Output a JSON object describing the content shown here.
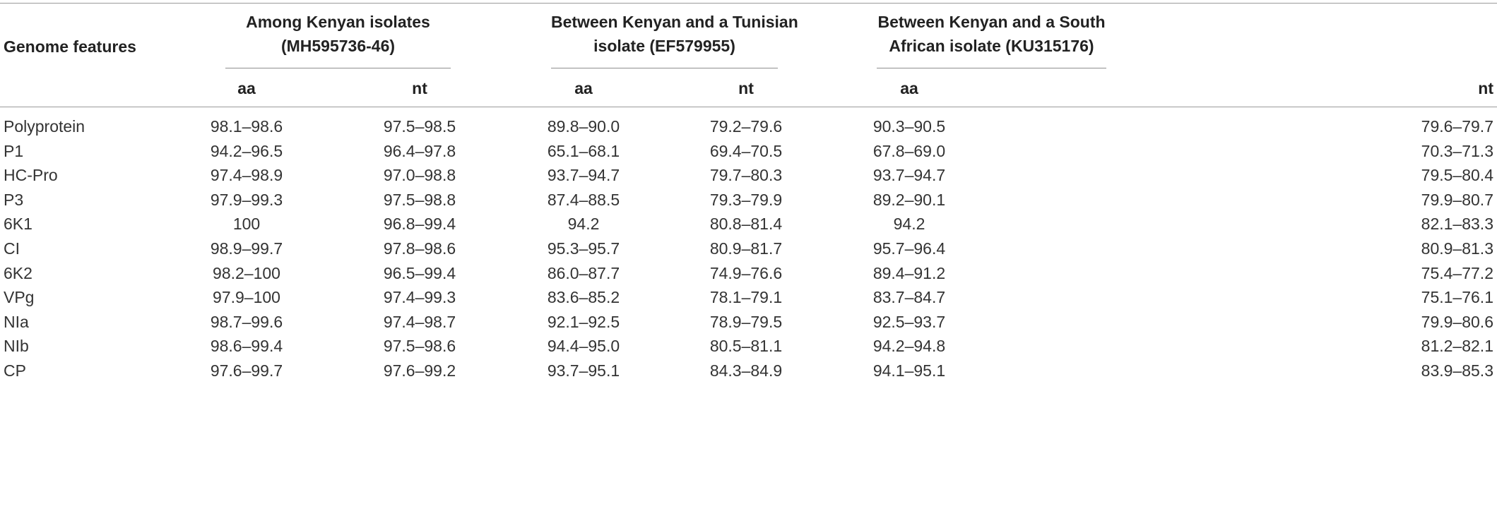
{
  "table": {
    "first_column_header": "Genome features",
    "groups": [
      {
        "line1": "Among Kenyan isolates",
        "line2": "(MH595736-46)"
      },
      {
        "line1": "Between Kenyan and a Tunisian",
        "line2": "isolate (EF579955)"
      },
      {
        "line1": "Between Kenyan and a South",
        "line2": "African isolate (KU315176)"
      }
    ],
    "subheaders": [
      "aa",
      "nt",
      "aa",
      "nt",
      "aa",
      "nt"
    ],
    "rows": [
      {
        "feature": "Polyprotein",
        "values": [
          "98.1–98.6",
          "97.5–98.5",
          "89.8–90.0",
          "79.2–79.6",
          "90.3–90.5",
          "79.6–79.7"
        ]
      },
      {
        "feature": "P1",
        "values": [
          "94.2–96.5",
          "96.4–97.8",
          "65.1–68.1",
          "69.4–70.5",
          "67.8–69.0",
          "70.3–71.3"
        ]
      },
      {
        "feature": "HC-Pro",
        "values": [
          "97.4–98.9",
          "97.0–98.8",
          "93.7–94.7",
          "79.7–80.3",
          "93.7–94.7",
          "79.5–80.4"
        ]
      },
      {
        "feature": "P3",
        "values": [
          "97.9–99.3",
          "97.5–98.8",
          "87.4–88.5",
          "79.3–79.9",
          "89.2–90.1",
          "79.9–80.7"
        ]
      },
      {
        "feature": "6K1",
        "values": [
          "100",
          "96.8–99.4",
          "94.2",
          "80.8–81.4",
          "94.2",
          "82.1–83.3"
        ]
      },
      {
        "feature": "CI",
        "values": [
          "98.9–99.7",
          "97.8–98.6",
          "95.3–95.7",
          "80.9–81.7",
          "95.7–96.4",
          "80.9–81.3"
        ]
      },
      {
        "feature": "6K2",
        "values": [
          "98.2–100",
          "96.5–99.4",
          "86.0–87.7",
          "74.9–76.6",
          "89.4–91.2",
          "75.4–77.2"
        ]
      },
      {
        "feature": "VPg",
        "values": [
          "97.9–100",
          "97.4–99.3",
          "83.6–85.2",
          "78.1–79.1",
          "83.7–84.7",
          "75.1–76.1"
        ]
      },
      {
        "feature": "NIa",
        "values": [
          "98.7–99.6",
          "97.4–98.7",
          "92.1–92.5",
          "78.9–79.5",
          "92.5–93.7",
          "79.9–80.6"
        ]
      },
      {
        "feature": "NIb",
        "values": [
          "98.6–99.4",
          "97.5–98.6",
          "94.4–95.0",
          "80.5–81.1",
          "94.2–94.8",
          "81.2–82.1"
        ]
      },
      {
        "feature": "CP",
        "values": [
          "97.6–99.7",
          "97.6–99.2",
          "93.7–95.1",
          "84.3–84.9",
          "94.1–95.1",
          "83.9–85.3"
        ]
      }
    ]
  }
}
